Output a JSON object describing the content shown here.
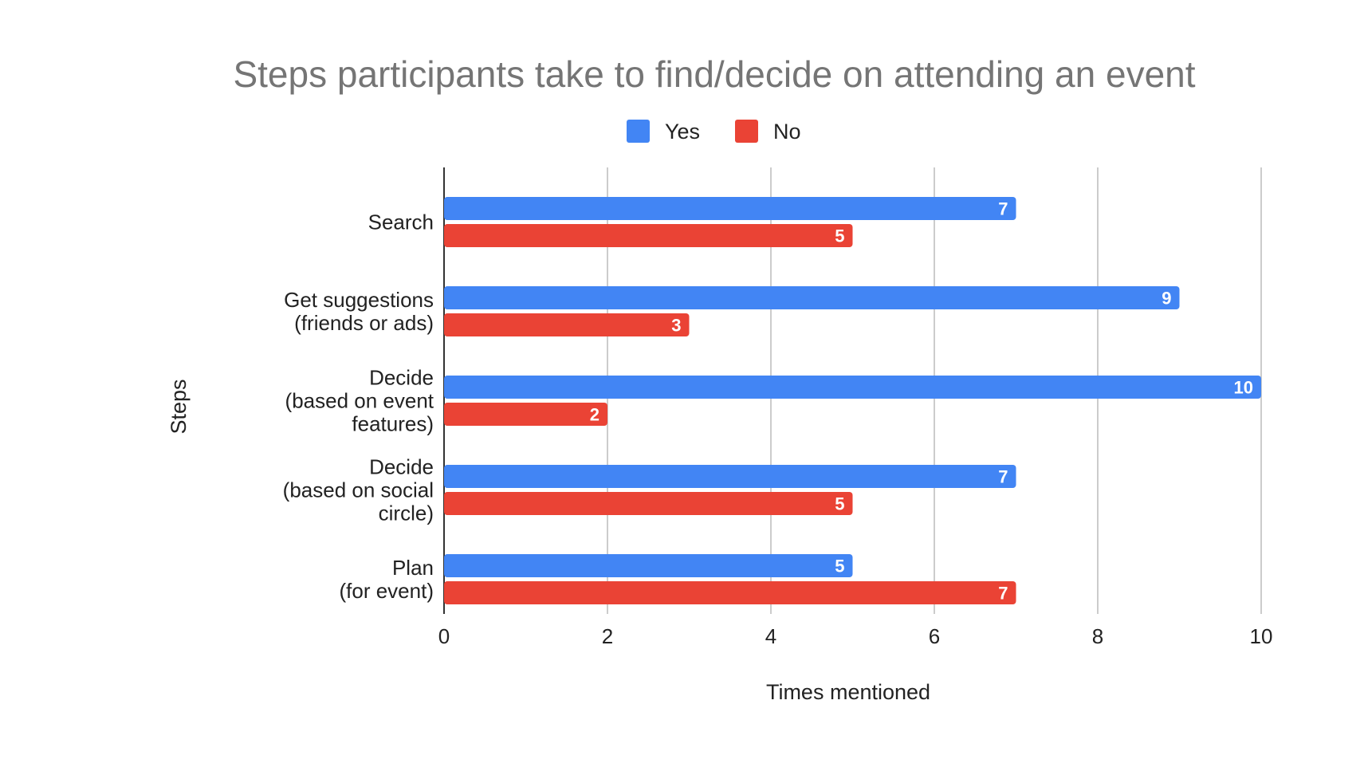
{
  "chart_data": {
    "type": "bar",
    "orientation": "horizontal",
    "title": "Steps participants take to find/decide on attending an event",
    "xlabel": "Times mentioned",
    "ylabel": "Steps",
    "categories": [
      [
        "Search"
      ],
      [
        "Get suggestions",
        "(friends or ads)"
      ],
      [
        "Decide",
        "(based on event",
        "features)"
      ],
      [
        "Decide",
        "(based on social",
        "circle)"
      ],
      [
        "Plan",
        "(for event)"
      ]
    ],
    "series": [
      {
        "name": "Yes",
        "color": "#4285f4",
        "values": [
          7,
          9,
          10,
          7,
          5
        ]
      },
      {
        "name": "No",
        "color": "#ea4335",
        "values": [
          5,
          3,
          2,
          5,
          7
        ]
      }
    ],
    "xlim": [
      0,
      10
    ],
    "xticks": [
      "0",
      "2",
      "4",
      "6",
      "8",
      "10"
    ],
    "grid": true,
    "legend": "top-center",
    "data_labels": true
  }
}
